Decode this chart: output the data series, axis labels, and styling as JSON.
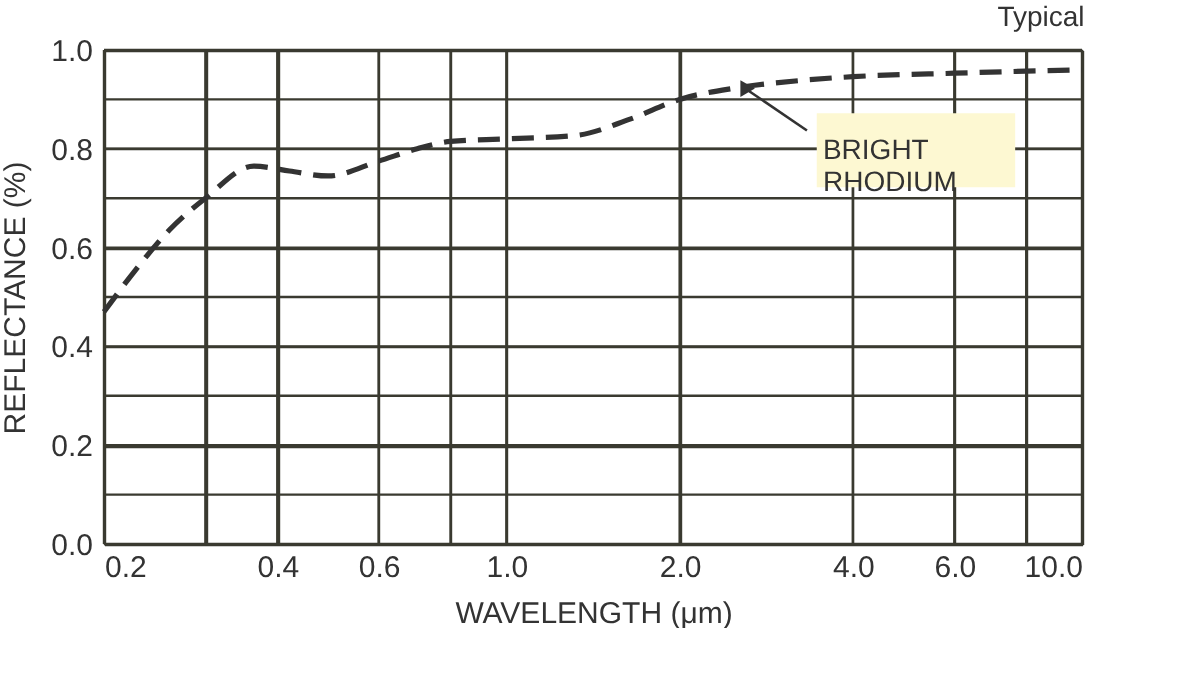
{
  "chart_data": {
    "type": "line",
    "title": "Typical",
    "xlabel": "WAVELENGTH (μm)",
    "ylabel": "REFLECTANCE (%)",
    "x": [
      0.2,
      0.227,
      0.26,
      0.3,
      0.364,
      0.42,
      0.49,
      0.6,
      0.7,
      0.8,
      1.0,
      1.32,
      1.64,
      2.0,
      2.5,
      3.3,
      4.0,
      6.0,
      10.0
    ],
    "series": [
      {
        "color": "#333333",
        "values": [
          0.47,
          0.555,
          0.636,
          0.7,
          0.765,
          0.755,
          0.745,
          0.775,
          0.8,
          0.815,
          0.82,
          0.827,
          0.86,
          0.9,
          0.923,
          0.939,
          0.946,
          0.953,
          0.96
        ]
      }
    ],
    "log": "x",
    "xlim": [
      0.2,
      10.0
    ],
    "ylim": [
      0.0,
      1.0
    ],
    "xticks": [
      {
        "value": 0.2,
        "label": "0.2"
      },
      {
        "value": 0.3,
        "label": null
      },
      0.4,
      0.6,
      {
        "value": 0.8,
        "label": null
      },
      {
        "value": 1.0,
        "label": "1.0"
      },
      {
        "value": 2.0,
        "label": "2.0"
      },
      {
        "value": 4.0,
        "label": "4.0"
      },
      {
        "value": 6.0,
        "label": "6.0"
      },
      {
        "value": 8.0,
        "label": null
      },
      {
        "value": 10.0,
        "label": "10.0"
      }
    ],
    "yticks": [
      {
        "value": 0.0,
        "label": "0.0"
      },
      {
        "value": 0.1,
        "label": null
      },
      0.2,
      {
        "value": 0.3,
        "label": null
      },
      0.4,
      {
        "value": 0.5,
        "label": null
      },
      0.6,
      {
        "value": 0.7,
        "label": null
      },
      0.8,
      {
        "value": 0.9,
        "label": null
      },
      {
        "value": 1.0,
        "label": "1.0"
      }
    ],
    "grid": true,
    "line_style": "dashed",
    "marker": "none",
    "annotations": [
      {
        "text": "BRIGHT\nRHODIUM",
        "x": 2.6,
        "y": 0.922
      }
    ]
  }
}
